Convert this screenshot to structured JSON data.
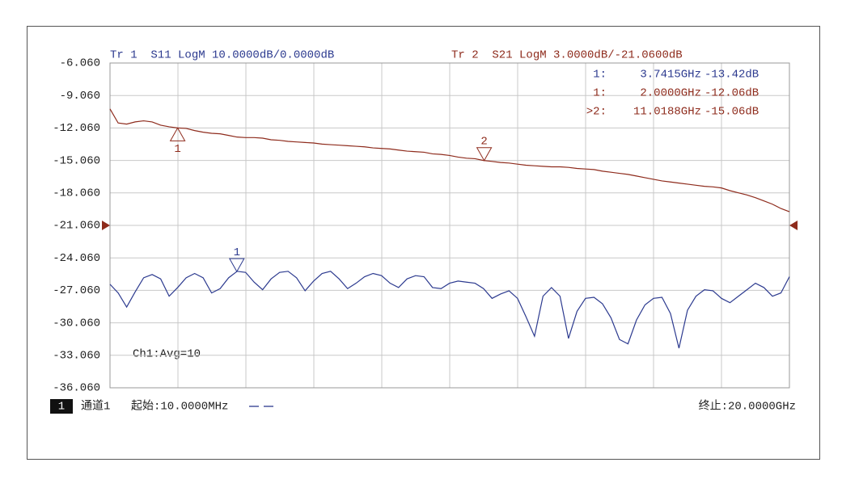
{
  "chart_data": {
    "type": "line",
    "trace_headers": [
      {
        "text": "Tr 1  S11 LogM 10.0000dB/0.0000dB",
        "series": 0
      },
      {
        "text": "Tr 2  S21 LogM 3.0000dB/-21.0600dB",
        "series": 1
      }
    ],
    "x": [
      0.01,
      0.25,
      0.5,
      0.75,
      1,
      1.25,
      1.5,
      1.75,
      2,
      2.25,
      2.5,
      2.75,
      3,
      3.25,
      3.5,
      3.75,
      4,
      4.25,
      4.5,
      4.75,
      5,
      5.25,
      5.5,
      5.75,
      6,
      6.25,
      6.5,
      6.75,
      7,
      7.25,
      7.5,
      7.75,
      8,
      8.25,
      8.5,
      8.75,
      9,
      9.25,
      9.5,
      9.75,
      10,
      10.25,
      10.5,
      10.75,
      11,
      11.25,
      11.5,
      11.75,
      12,
      12.25,
      12.5,
      12.75,
      13,
      13.25,
      13.5,
      13.75,
      14,
      14.25,
      14.5,
      14.75,
      15,
      15.25,
      15.5,
      15.75,
      16,
      16.25,
      16.5,
      16.75,
      17,
      17.25,
      17.5,
      17.75,
      18,
      18.25,
      18.5,
      18.75,
      19,
      19.25,
      19.5,
      19.75,
      20
    ],
    "series": [
      {
        "name": "S11",
        "color": "#2c3a8f",
        "values": [
          -26.5,
          -27.3,
          -28.6,
          -27.2,
          -25.9,
          -25.6,
          -26.0,
          -27.6,
          -26.8,
          -25.9,
          -25.5,
          -25.9,
          -27.3,
          -26.9,
          -25.9,
          -25.3,
          -25.4,
          -26.3,
          -27.0,
          -26.0,
          -25.4,
          -25.3,
          -25.9,
          -27.1,
          -26.2,
          -25.5,
          -25.3,
          -26.0,
          -26.9,
          -26.4,
          -25.8,
          -25.5,
          -25.7,
          -26.4,
          -26.8,
          -26.0,
          -25.7,
          -25.8,
          -26.8,
          -26.9,
          -26.4,
          -26.2,
          -26.3,
          -26.4,
          -26.9,
          -27.8,
          -27.4,
          -27.1,
          -27.8,
          -29.5,
          -31.3,
          -27.6,
          -26.8,
          -27.6,
          -31.5,
          -29.0,
          -27.8,
          -27.7,
          -28.3,
          -29.6,
          -31.6,
          -32.0,
          -29.8,
          -28.4,
          -27.8,
          -27.7,
          -29.2,
          -32.4,
          -28.9,
          -27.6,
          -27.0,
          -27.1,
          -27.8,
          -28.2,
          -27.6,
          -27.0,
          -26.4,
          -26.8,
          -27.6,
          -27.3,
          -25.8
        ]
      },
      {
        "name": "S21",
        "color": "#8e2b1c",
        "values": [
          -10.3,
          -11.6,
          -11.7,
          -11.5,
          -11.4,
          -11.5,
          -11.8,
          -11.95,
          -12.06,
          -12.1,
          -12.3,
          -12.45,
          -12.55,
          -12.6,
          -12.75,
          -12.9,
          -12.95,
          -12.95,
          -13.0,
          -13.15,
          -13.2,
          -13.3,
          -13.35,
          -13.4,
          -13.45,
          -13.55,
          -13.6,
          -13.65,
          -13.7,
          -13.75,
          -13.8,
          -13.9,
          -13.95,
          -14.0,
          -14.1,
          -14.2,
          -14.25,
          -14.3,
          -14.45,
          -14.5,
          -14.6,
          -14.75,
          -14.85,
          -14.9,
          -15.06,
          -15.15,
          -15.25,
          -15.3,
          -15.4,
          -15.5,
          -15.55,
          -15.6,
          -15.65,
          -15.65,
          -15.7,
          -15.8,
          -15.85,
          -15.9,
          -16.05,
          -16.15,
          -16.25,
          -16.35,
          -16.5,
          -16.65,
          -16.8,
          -16.95,
          -17.05,
          -17.15,
          -17.25,
          -17.35,
          -17.45,
          -17.5,
          -17.6,
          -17.85,
          -18.05,
          -18.25,
          -18.5,
          -18.8,
          -19.1,
          -19.5,
          -19.8
        ]
      }
    ],
    "xlim": [
      0.01,
      20
    ],
    "xgrid_divisions": 10,
    "ylim": [
      -36.06,
      -6.06
    ],
    "yticks": [
      {
        "value": -6.06,
        "label": "-6.060"
      },
      {
        "value": -9.06,
        "label": "-9.060"
      },
      {
        "value": -12.06,
        "label": "-12.060"
      },
      {
        "value": -15.06,
        "label": "-15.060"
      },
      {
        "value": -18.06,
        "label": "-18.060"
      },
      {
        "value": -21.06,
        "label": "-21.060"
      },
      {
        "value": -24.06,
        "label": "-24.060"
      },
      {
        "value": -27.06,
        "label": "-27.060"
      },
      {
        "value": -30.06,
        "label": "-30.060"
      },
      {
        "value": -33.06,
        "label": "-33.060"
      },
      {
        "value": -36.06,
        "label": "-36.060"
      }
    ],
    "grid": true,
    "reference_value": -21.06,
    "markers": [
      {
        "series": 0,
        "x": 3.7415,
        "label": "1",
        "position": "above"
      },
      {
        "series": 1,
        "x": 2.0,
        "label": "1",
        "position": "below"
      },
      {
        "series": 1,
        "x": 11.0188,
        "label": "2",
        "position": "above"
      }
    ],
    "marker_table": [
      {
        "series": 0,
        "marker": "1:",
        "frequency": "3.7415GHz",
        "value": "-13.42dB"
      },
      {
        "series": 1,
        "marker": "1:",
        "frequency": "2.0000GHz",
        "value": "-12.06dB"
      },
      {
        "series": 1,
        "marker": ">2:",
        "frequency": "11.0188GHz",
        "value": "-15.06dB"
      }
    ],
    "annotation": "Ch1:Avg=10",
    "channel_badge": "1",
    "channel_name": "通道1",
    "start_label": "起始:10.0000MHz",
    "stop_label": "终止:20.0000GHz"
  }
}
